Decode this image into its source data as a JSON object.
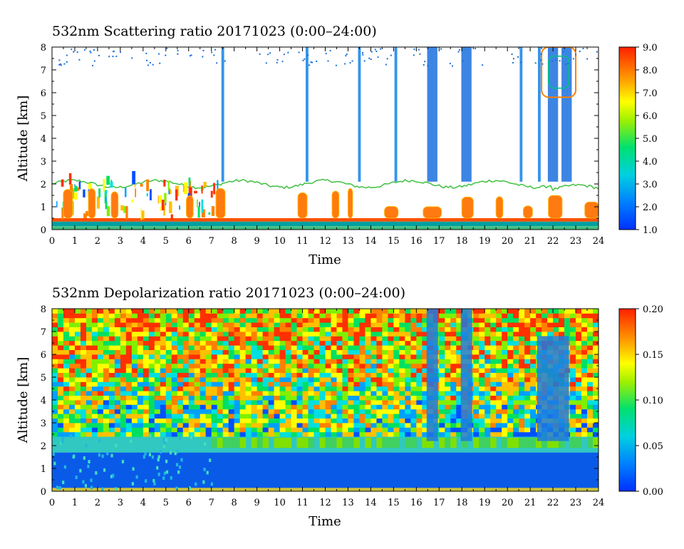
{
  "chart_data": [
    {
      "type": "heatmap",
      "title": "532nm Scattering ratio  20171023 (0:00–24:00)",
      "xlabel": "Time",
      "ylabel": "Altitude [km]",
      "xlim": [
        0,
        24
      ],
      "ylim": [
        0,
        8
      ],
      "xticks": [
        "0",
        "1",
        "2",
        "3",
        "4",
        "5",
        "6",
        "7",
        "8",
        "9",
        "10",
        "11",
        "12",
        "13",
        "14",
        "15",
        "16",
        "17",
        "18",
        "19",
        "20",
        "21",
        "22",
        "23",
        "24"
      ],
      "yticks": [
        "0",
        "1",
        "2",
        "3",
        "4",
        "5",
        "6",
        "7",
        "8"
      ],
      "colorbar": {
        "min": 1.0,
        "max": 9.0,
        "ticks": [
          "1.0",
          "2.0",
          "3.0",
          "4.0",
          "5.0",
          "6.0",
          "7.0",
          "8.0",
          "9.0"
        ]
      },
      "features": {
        "boundary_layer_top_km": 2.0,
        "low_cloud_km": [
          0.5,
          1.8
        ],
        "surface_band_km": [
          0.2,
          0.5
        ],
        "vertical_streaks_hours": [
          7.5,
          11.2,
          13.5,
          15.1,
          16.7,
          18.2,
          20.6,
          21.4,
          22.0,
          22.6
        ],
        "upper_cloud_hours": [
          21.5,
          23.0
        ],
        "upper_cloud_km": [
          5.8,
          8.0
        ]
      }
    },
    {
      "type": "heatmap",
      "title": "532nm Depolarization ratio  20171023 (0:00–24:00)",
      "xlabel": "Time",
      "ylabel": "Altitude [km]",
      "xlim": [
        0,
        24
      ],
      "ylim": [
        0,
        8
      ],
      "xticks": [
        "0",
        "1",
        "2",
        "3",
        "4",
        "5",
        "6",
        "7",
        "8",
        "9",
        "10",
        "11",
        "12",
        "13",
        "14",
        "15",
        "16",
        "17",
        "18",
        "19",
        "20",
        "21",
        "22",
        "23",
        "24"
      ],
      "yticks": [
        "0",
        "1",
        "2",
        "3",
        "4",
        "5",
        "6",
        "7",
        "8"
      ],
      "colorbar": {
        "min": 0.0,
        "max": 0.2,
        "ticks": [
          "0.00",
          "0.05",
          "0.10",
          "0.15",
          "0.20"
        ]
      },
      "features": {
        "low_depol_layer_km": [
          0.0,
          1.7
        ],
        "transition_layer_km": [
          1.7,
          2.4
        ],
        "noisy_region_km": [
          2.4,
          8.0
        ],
        "low_depol_columns_hours": [
          16.7,
          18.2,
          22.0
        ]
      }
    }
  ],
  "colors": {
    "scale": [
      "#0050ff",
      "#00a0ff",
      "#00e0e0",
      "#00e060",
      "#80f000",
      "#ffff00",
      "#ffc000",
      "#ff8000",
      "#ff3000"
    ],
    "background": "#ffffff",
    "no_data": "#ffffff"
  }
}
